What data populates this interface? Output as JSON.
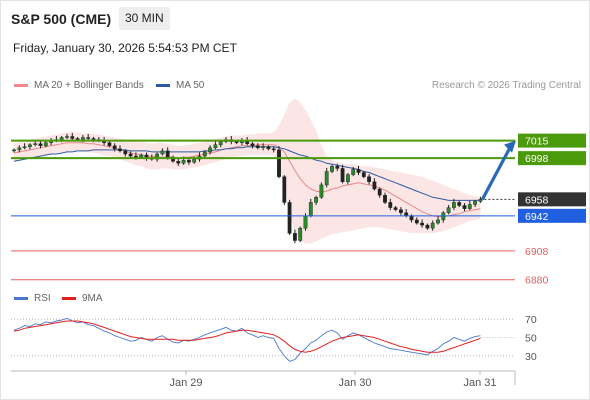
{
  "header": {
    "instrument": "S&P 500 (CME)",
    "timeframe": "30 MIN",
    "datetime": "Friday, January 30, 2026 5:54:53 PM CET",
    "credit": "Research © 2026 Trading Central"
  },
  "colors": {
    "bollinger": "#f08a8a",
    "ma50": "#2c5aa0",
    "resistance": "#4a9a0a",
    "support": "#1f5fe0",
    "target": "#e06060",
    "rsi": "#4a78d0",
    "rsi_ma": "#e02020",
    "arrow": "#2868b8",
    "last_price_bg": "#333333"
  },
  "chart_data": [
    {
      "type": "candlestick",
      "legend": [
        {
          "name": "MA 20 + Bollinger Bands",
          "color": "#f08a8a"
        },
        {
          "name": "MA 50",
          "color": "#2c5aa0"
        }
      ],
      "x_ticks": [
        "Jan 29",
        "Jan 30",
        "Jan 31"
      ],
      "ylim": [
        6870,
        7035
      ],
      "levels": [
        {
          "value": 7015,
          "label": "7015",
          "kind": "resistance"
        },
        {
          "value": 6998,
          "label": "6998",
          "kind": "resistance"
        },
        {
          "value": 6958,
          "label": "6958",
          "kind": "last_price"
        },
        {
          "value": 6942,
          "label": "6942",
          "kind": "support"
        },
        {
          "value": 6908,
          "label": "6908",
          "kind": "target"
        },
        {
          "value": 6880,
          "label": "6880",
          "kind": "target"
        }
      ],
      "forecast": {
        "from": 6958,
        "to": 7015,
        "direction": "up"
      },
      "closes": [
        7006,
        7008,
        7009,
        7011,
        7012,
        7010,
        7013,
        7015,
        7016,
        7018,
        7019,
        7017,
        7016,
        7018,
        7017,
        7016,
        7015,
        7013,
        7010,
        7007,
        7005,
        7002,
        7000,
        6999,
        7001,
        6998,
        6997,
        7002,
        7005,
        6999,
        6995,
        6993,
        6996,
        6994,
        6997,
        7000,
        7004,
        7008,
        7011,
        7014,
        7016,
        7014,
        7013,
        7015,
        7012,
        7010,
        7008,
        7009,
        7007,
        7006,
        6980,
        6955,
        6925,
        6918,
        6930,
        6942,
        6955,
        6960,
        6972,
        6985,
        6990,
        6988,
        6975,
        6982,
        6987,
        6984,
        6980,
        6975,
        6968,
        6962,
        6955,
        6950,
        6948,
        6945,
        6942,
        6938,
        6935,
        6933,
        6930,
        6935,
        6938,
        6945,
        6950,
        6955,
        6952,
        6949,
        6953,
        6956,
        6958
      ],
      "bb_upper": [
        7012,
        7014,
        7015,
        7016,
        7017,
        7018,
        7019,
        7020,
        7021,
        7022,
        7023,
        7023,
        7023,
        7022,
        7022,
        7021,
        7021,
        7020,
        7019,
        7018,
        7017,
        7016,
        7015,
        7014,
        7014,
        7013,
        7012,
        7013,
        7013,
        7012,
        7011,
        7010,
        7010,
        7011,
        7012,
        7013,
        7014,
        7015,
        7017,
        7018,
        7019,
        7020,
        7020,
        7020,
        7021,
        7021,
        7022,
        7022,
        7022,
        7023,
        7030,
        7040,
        7052,
        7056,
        7052,
        7045,
        7035,
        7025,
        7010,
        7000,
        6996,
        6994,
        6993,
        6992,
        6992,
        6991,
        6990,
        6990,
        6989,
        6988,
        6987,
        6986,
        6985,
        6984,
        6983,
        6982,
        6981,
        6980,
        6978,
        6976,
        6974,
        6972,
        6970,
        6968,
        6966,
        6964,
        6962,
        6961,
        6960
      ],
      "bb_lower": [
        6995,
        6996,
        6997,
        6998,
        6999,
        7000,
        7001,
        7002,
        7003,
        7004,
        7004,
        7005,
        7005,
        7004,
        7004,
        7003,
        7002,
        7001,
        7000,
        6999,
        6997,
        6995,
        6993,
        6991,
        6990,
        6988,
        6987,
        6987,
        6988,
        6988,
        6987,
        6987,
        6987,
        6988,
        6989,
        6990,
        6991,
        6993,
        6994,
        6996,
        6997,
        6998,
        7000,
        7000,
        7001,
        7001,
        7001,
        7001,
        7001,
        7001,
        6990,
        6970,
        6945,
        6925,
        6918,
        6915,
        6915,
        6917,
        6920,
        6922,
        6924,
        6925,
        6926,
        6927,
        6928,
        6929,
        6930,
        6931,
        6931,
        6931,
        6930,
        6929,
        6928,
        6927,
        6926,
        6925,
        6925,
        6925,
        6925,
        6925,
        6926,
        6927,
        6929,
        6931,
        6933,
        6935,
        6937,
        6938,
        6939
      ],
      "ma20": [
        7003,
        7004,
        7005,
        7006,
        7007,
        7008,
        7009,
        7010,
        7011,
        7012,
        7013,
        7013,
        7013,
        7013,
        7012,
        7012,
        7011,
        7010,
        7009,
        7008,
        7006,
        7005,
        7003,
        7002,
        7001,
        7000,
        7000,
        6999,
        6999,
        6999,
        6999,
        6998,
        6999,
        6999,
        7000,
        7001,
        7002,
        7003,
        7004,
        7006,
        7007,
        7008,
        7009,
        7010,
        7010,
        7010,
        7011,
        7011,
        7011,
        7011,
        7009,
        7004,
        6995,
        6986,
        6978,
        6972,
        6968,
        6966,
        6965,
        6966,
        6968,
        6969,
        6971,
        6972,
        6973,
        6974,
        6973,
        6972,
        6971,
        6969,
        6967,
        6964,
        6961,
        6958,
        6955,
        6952,
        6949,
        6946,
        6944,
        6942,
        6941,
        6941,
        6942,
        6943,
        6944,
        6946,
        6947,
        6948,
        6949
      ],
      "ma50": [
        6995,
        6996,
        6997,
        6998,
        6999,
        7000,
        7001,
        7002,
        7002,
        7003,
        7004,
        7004,
        7005,
        7005,
        7005,
        7006,
        7006,
        7006,
        7006,
        7006,
        7006,
        7006,
        7005,
        7005,
        7005,
        7005,
        7004,
        7004,
        7004,
        7004,
        7004,
        7004,
        7004,
        7004,
        7004,
        7004,
        7005,
        7005,
        7006,
        7006,
        7007,
        7007,
        7008,
        7008,
        7009,
        7009,
        7009,
        7009,
        7009,
        7009,
        7008,
        7007,
        7005,
        7003,
        7001,
        7000,
        6998,
        6996,
        6995,
        6993,
        6992,
        6991,
        6990,
        6989,
        6988,
        6987,
        6985,
        6984,
        6982,
        6980,
        6978,
        6976,
        6974,
        6972,
        6970,
        6968,
        6966,
        6964,
        6962,
        6960,
        6959,
        6958,
        6957,
        6957,
        6957,
        6957,
        6957,
        6957,
        6957
      ]
    },
    {
      "type": "line",
      "legend": [
        {
          "name": "RSI",
          "color": "#4a78d0"
        },
        {
          "name": "9MA",
          "color": "#e02020"
        }
      ],
      "ylim": [
        20,
        80
      ],
      "y_ticks": [
        70,
        50,
        30
      ],
      "series": [
        {
          "name": "RSI",
          "values": [
            58,
            60,
            63,
            62,
            65,
            64,
            67,
            66,
            68,
            69,
            71,
            68,
            66,
            67,
            64,
            63,
            60,
            57,
            55,
            52,
            50,
            48,
            46,
            47,
            50,
            48,
            46,
            50,
            52,
            48,
            45,
            44,
            47,
            46,
            48,
            50,
            53,
            55,
            57,
            59,
            61,
            58,
            57,
            60,
            55,
            53,
            50,
            52,
            50,
            49,
            38,
            30,
            24,
            26,
            33,
            38,
            44,
            47,
            52,
            56,
            58,
            55,
            48,
            52,
            55,
            53,
            50,
            47,
            44,
            42,
            40,
            38,
            37,
            36,
            35,
            34,
            33,
            32,
            31,
            35,
            38,
            43,
            46,
            50,
            48,
            46,
            49,
            51,
            52
          ]
        },
        {
          "name": "9MA",
          "values": [
            57,
            58,
            60,
            61,
            62,
            63,
            64,
            65,
            66,
            67,
            68,
            68,
            68,
            67,
            66,
            65,
            63,
            61,
            59,
            57,
            55,
            53,
            51,
            50,
            49,
            48,
            48,
            48,
            48,
            48,
            48,
            47,
            47,
            47,
            47,
            48,
            49,
            50,
            51,
            53,
            55,
            56,
            57,
            58,
            58,
            57,
            56,
            55,
            54,
            53,
            50,
            46,
            41,
            37,
            35,
            34,
            35,
            37,
            40,
            43,
            46,
            48,
            50,
            51,
            52,
            53,
            52,
            51,
            50,
            48,
            46,
            44,
            42,
            40,
            39,
            37,
            36,
            35,
            34,
            34,
            34,
            35,
            37,
            39,
            41,
            43,
            45,
            47,
            49
          ]
        }
      ]
    }
  ]
}
